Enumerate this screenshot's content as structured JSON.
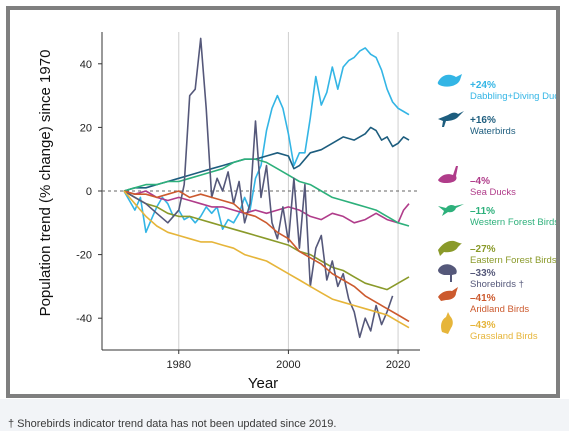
{
  "chart_data": {
    "type": "line",
    "ylabel": "Population trend (% change) since 1970",
    "xlabel": "Year",
    "xlim": [
      1966,
      2024
    ],
    "ylim": [
      -50,
      50
    ],
    "x_ticks": [
      1980,
      2000,
      2020
    ],
    "y_ticks": [
      -40,
      -20,
      0,
      20,
      40
    ],
    "y_tick_labels": [
      "-40",
      "-20",
      "0",
      "20",
      "40"
    ],
    "grid": "vertical gridlines at decades; dashed zero line",
    "series": [
      {
        "name": "Dabbling+Diving Ducks",
        "label": "+24%",
        "color": "#33b5e5",
        "icon": "duck-icon",
        "points": [
          [
            1970,
            0
          ],
          [
            1971,
            -3
          ],
          [
            1972,
            -6
          ],
          [
            1973,
            -2
          ],
          [
            1974,
            -13
          ],
          [
            1975,
            -9
          ],
          [
            1976,
            -5
          ],
          [
            1977,
            -2
          ],
          [
            1978,
            -4
          ],
          [
            1979,
            -8
          ],
          [
            1980,
            -6
          ],
          [
            1981,
            -9
          ],
          [
            1982,
            -8
          ],
          [
            1983,
            -10
          ],
          [
            1984,
            -8
          ],
          [
            1985,
            -5
          ],
          [
            1986,
            -7
          ],
          [
            1987,
            -5
          ],
          [
            1988,
            -12
          ],
          [
            1989,
            -9
          ],
          [
            1990,
            -10
          ],
          [
            1991,
            -7
          ],
          [
            1992,
            -2
          ],
          [
            1993,
            -6
          ],
          [
            1994,
            4
          ],
          [
            1995,
            8
          ],
          [
            1996,
            19
          ],
          [
            1997,
            26
          ],
          [
            1998,
            30
          ],
          [
            1999,
            26
          ],
          [
            2000,
            18
          ],
          [
            2001,
            8
          ],
          [
            2002,
            12
          ],
          [
            2003,
            12
          ],
          [
            2004,
            23
          ],
          [
            2005,
            36
          ],
          [
            2006,
            27
          ],
          [
            2007,
            31
          ],
          [
            2008,
            39
          ],
          [
            2009,
            32
          ],
          [
            2010,
            39
          ],
          [
            2011,
            41
          ],
          [
            2012,
            42
          ],
          [
            2013,
            44
          ],
          [
            2014,
            45
          ],
          [
            2015,
            43
          ],
          [
            2016,
            42
          ],
          [
            2017,
            38
          ],
          [
            2018,
            32
          ],
          [
            2019,
            28
          ],
          [
            2020,
            26
          ],
          [
            2021,
            25
          ],
          [
            2022,
            24
          ]
        ]
      },
      {
        "name": "Waterbirds",
        "label": "+16%",
        "color": "#1d5d7e",
        "icon": "heron-icon",
        "points": [
          [
            1970,
            0
          ],
          [
            1972,
            1
          ],
          [
            1974,
            1
          ],
          [
            1976,
            2
          ],
          [
            1978,
            3
          ],
          [
            1980,
            4
          ],
          [
            1982,
            5
          ],
          [
            1984,
            6
          ],
          [
            1986,
            7
          ],
          [
            1988,
            8
          ],
          [
            1990,
            9
          ],
          [
            1992,
            10
          ],
          [
            1994,
            10
          ],
          [
            1996,
            11
          ],
          [
            1998,
            12
          ],
          [
            2000,
            11
          ],
          [
            2001,
            7
          ],
          [
            2002,
            8
          ],
          [
            2004,
            12
          ],
          [
            2006,
            13
          ],
          [
            2008,
            15
          ],
          [
            2010,
            17
          ],
          [
            2012,
            16
          ],
          [
            2014,
            18
          ],
          [
            2015,
            20
          ],
          [
            2016,
            19
          ],
          [
            2017,
            16
          ],
          [
            2018,
            17
          ],
          [
            2019,
            14
          ],
          [
            2020,
            15
          ],
          [
            2021,
            17
          ],
          [
            2022,
            16
          ]
        ]
      },
      {
        "name": "Sea Ducks",
        "label": "–4%",
        "color": "#b03c8a",
        "icon": "sea-duck-icon",
        "points": [
          [
            1970,
            0
          ],
          [
            1972,
            -1
          ],
          [
            1974,
            0
          ],
          [
            1976,
            -2
          ],
          [
            1978,
            -3
          ],
          [
            1980,
            -2
          ],
          [
            1982,
            -3
          ],
          [
            1984,
            -4
          ],
          [
            1986,
            -5
          ],
          [
            1988,
            -5
          ],
          [
            1990,
            -6
          ],
          [
            1992,
            -7
          ],
          [
            1994,
            -6
          ],
          [
            1996,
            -7
          ],
          [
            1998,
            -6
          ],
          [
            2000,
            -5
          ],
          [
            2002,
            -6
          ],
          [
            2004,
            -8
          ],
          [
            2006,
            -9
          ],
          [
            2008,
            -7
          ],
          [
            2010,
            -8
          ],
          [
            2012,
            -10
          ],
          [
            2014,
            -9
          ],
          [
            2016,
            -7
          ],
          [
            2018,
            -9
          ],
          [
            2020,
            -10
          ],
          [
            2021,
            -6
          ],
          [
            2022,
            -4
          ]
        ]
      },
      {
        "name": "Western Forest Birds",
        "label": "–11%",
        "color": "#2db07b",
        "icon": "hummingbird-icon",
        "points": [
          [
            1970,
            0
          ],
          [
            1972,
            1
          ],
          [
            1974,
            2
          ],
          [
            1976,
            2
          ],
          [
            1978,
            3
          ],
          [
            1980,
            3
          ],
          [
            1982,
            4
          ],
          [
            1984,
            5
          ],
          [
            1986,
            6
          ],
          [
            1988,
            7
          ],
          [
            1990,
            9
          ],
          [
            1992,
            10
          ],
          [
            1994,
            10
          ],
          [
            1996,
            9
          ],
          [
            1998,
            7
          ],
          [
            2000,
            5
          ],
          [
            2002,
            3
          ],
          [
            2004,
            2
          ],
          [
            2006,
            0
          ],
          [
            2008,
            -2
          ],
          [
            2010,
            -3
          ],
          [
            2012,
            -4
          ],
          [
            2014,
            -5
          ],
          [
            2016,
            -6
          ],
          [
            2018,
            -8
          ],
          [
            2020,
            -10
          ],
          [
            2022,
            -11
          ]
        ]
      },
      {
        "name": "Eastern Forest Birds",
        "label": "–27%",
        "color": "#8a9a2a",
        "icon": "songbird-icon",
        "points": [
          [
            1970,
            0
          ],
          [
            1972,
            -2
          ],
          [
            1974,
            -4
          ],
          [
            1976,
            -5
          ],
          [
            1978,
            -7
          ],
          [
            1980,
            -8
          ],
          [
            1982,
            -8
          ],
          [
            1984,
            -9
          ],
          [
            1986,
            -10
          ],
          [
            1988,
            -11
          ],
          [
            1990,
            -12
          ],
          [
            1992,
            -13
          ],
          [
            1994,
            -14
          ],
          [
            1996,
            -15
          ],
          [
            1998,
            -16
          ],
          [
            2000,
            -17
          ],
          [
            2002,
            -19
          ],
          [
            2004,
            -20
          ],
          [
            2006,
            -22
          ],
          [
            2008,
            -24
          ],
          [
            2010,
            -25
          ],
          [
            2012,
            -27
          ],
          [
            2014,
            -29
          ],
          [
            2016,
            -30
          ],
          [
            2018,
            -31
          ],
          [
            2020,
            -29
          ],
          [
            2022,
            -27
          ]
        ]
      },
      {
        "name": "Shorebirds",
        "label": "–33%",
        "color": "#55587a",
        "icon": "shorebird-icon",
        "note": "†",
        "points": [
          [
            1970,
            0
          ],
          [
            1972,
            -2
          ],
          [
            1974,
            -4
          ],
          [
            1976,
            -7
          ],
          [
            1978,
            -10
          ],
          [
            1980,
            -6
          ],
          [
            1981,
            2
          ],
          [
            1982,
            30
          ],
          [
            1983,
            32
          ],
          [
            1984,
            48
          ],
          [
            1985,
            26
          ],
          [
            1986,
            -2
          ],
          [
            1987,
            4
          ],
          [
            1988,
            0
          ],
          [
            1989,
            6
          ],
          [
            1990,
            -4
          ],
          [
            1991,
            3
          ],
          [
            1992,
            -10
          ],
          [
            1993,
            -4
          ],
          [
            1994,
            22
          ],
          [
            1995,
            -2
          ],
          [
            1996,
            8
          ],
          [
            1997,
            -10
          ],
          [
            1998,
            -15
          ],
          [
            1999,
            -5
          ],
          [
            2000,
            -16
          ],
          [
            2001,
            4
          ],
          [
            2002,
            -18
          ],
          [
            2003,
            2
          ],
          [
            2004,
            -30
          ],
          [
            2005,
            -18
          ],
          [
            2006,
            -14
          ],
          [
            2007,
            -28
          ],
          [
            2008,
            -22
          ],
          [
            2009,
            -30
          ],
          [
            2010,
            -26
          ],
          [
            2011,
            -34
          ],
          [
            2012,
            -38
          ],
          [
            2013,
            -46
          ],
          [
            2014,
            -40
          ],
          [
            2015,
            -44
          ],
          [
            2016,
            -36
          ],
          [
            2017,
            -42
          ],
          [
            2018,
            -38
          ],
          [
            2019,
            -33
          ]
        ]
      },
      {
        "name": "Aridland Birds",
        "label": "–41%",
        "color": "#cc5a2e",
        "icon": "aridland-bird-icon",
        "points": [
          [
            1970,
            0
          ],
          [
            1972,
            -1
          ],
          [
            1974,
            -1
          ],
          [
            1976,
            -2
          ],
          [
            1978,
            -1
          ],
          [
            1980,
            0
          ],
          [
            1982,
            -2
          ],
          [
            1984,
            -1
          ],
          [
            1986,
            -2
          ],
          [
            1988,
            -3
          ],
          [
            1990,
            -4
          ],
          [
            1992,
            -7
          ],
          [
            1994,
            -8
          ],
          [
            1996,
            -10
          ],
          [
            1998,
            -13
          ],
          [
            2000,
            -15
          ],
          [
            2002,
            -19
          ],
          [
            2004,
            -21
          ],
          [
            2006,
            -23
          ],
          [
            2008,
            -26
          ],
          [
            2010,
            -28
          ],
          [
            2012,
            -30
          ],
          [
            2014,
            -33
          ],
          [
            2016,
            -35
          ],
          [
            2018,
            -37
          ],
          [
            2020,
            -39
          ],
          [
            2022,
            -41
          ]
        ]
      },
      {
        "name": "Grassland Birds",
        "label": "–43%",
        "color": "#e6b53a",
        "icon": "grassland-bird-icon",
        "points": [
          [
            1970,
            0
          ],
          [
            1972,
            -4
          ],
          [
            1974,
            -8
          ],
          [
            1976,
            -11
          ],
          [
            1978,
            -13
          ],
          [
            1980,
            -14
          ],
          [
            1982,
            -15
          ],
          [
            1984,
            -16
          ],
          [
            1986,
            -16
          ],
          [
            1988,
            -17
          ],
          [
            1990,
            -18
          ],
          [
            1992,
            -20
          ],
          [
            1994,
            -21
          ],
          [
            1996,
            -22
          ],
          [
            1998,
            -24
          ],
          [
            2000,
            -26
          ],
          [
            2002,
            -28
          ],
          [
            2004,
            -30
          ],
          [
            2006,
            -32
          ],
          [
            2008,
            -34
          ],
          [
            2010,
            -35
          ],
          [
            2012,
            -36
          ],
          [
            2014,
            -37
          ],
          [
            2016,
            -38
          ],
          [
            2018,
            -39
          ],
          [
            2020,
            -41
          ],
          [
            2022,
            -43
          ]
        ]
      }
    ]
  },
  "footnote": "† Shorebirds indicator trend data has not been updated since 2019."
}
